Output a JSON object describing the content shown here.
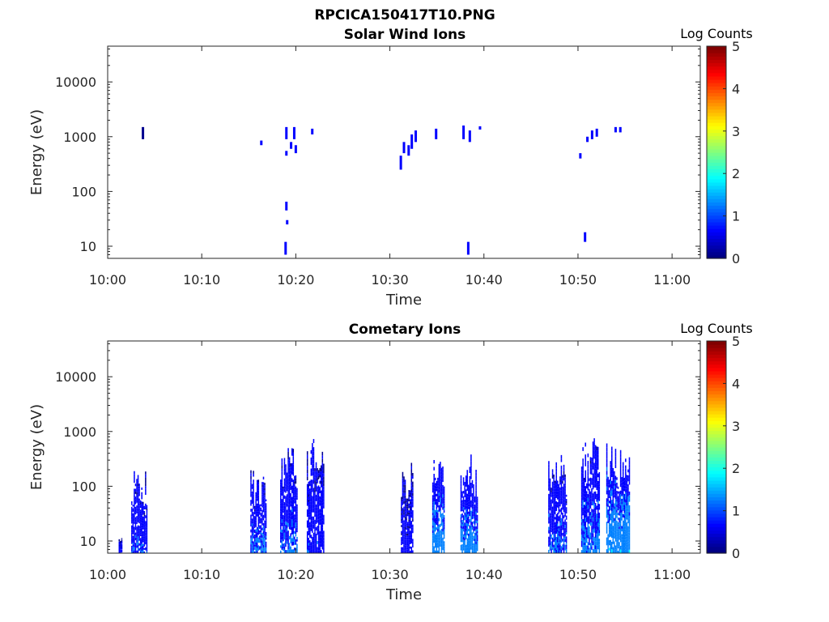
{
  "figure_title": "RPCICA150417T10.PNG",
  "colormap": [
    "#00008f",
    "#0000ff",
    "#0080ff",
    "#00ffff",
    "#80ff80",
    "#ffff00",
    "#ff8000",
    "#ff0000",
    "#800000"
  ],
  "chart_data": [
    {
      "type": "heatmap",
      "title": "Solar Wind Ions",
      "xlabel": "Time",
      "ylabel": "Energy (eV)",
      "xlim": [
        "10:00",
        "11:03"
      ],
      "x_ticks": [
        "10:00",
        "10:10",
        "10:20",
        "10:30",
        "10:40",
        "10:50",
        "11:00"
      ],
      "y_scale": "log",
      "ylim": [
        6,
        45000
      ],
      "y_ticks": [
        10,
        100,
        1000,
        10000
      ],
      "y_tick_labels": [
        "10",
        "100",
        "1000",
        "10000"
      ],
      "colorbar": {
        "label": "Log Counts",
        "range": [
          0,
          5
        ],
        "ticks": [
          "0",
          "1",
          "2",
          "3",
          "4",
          "5"
        ]
      },
      "cells": [
        {
          "t": "10:03:45",
          "e_lo": 900,
          "e_hi": 1500,
          "v": 0.3
        },
        {
          "t": "10:16:20",
          "e_lo": 700,
          "e_hi": 850,
          "v": 0.5
        },
        {
          "t": "10:18:55",
          "e_lo": 7,
          "e_hi": 12,
          "v": 0.4
        },
        {
          "t": "10:19:00",
          "e_lo": 45,
          "e_hi": 65,
          "v": 0.5
        },
        {
          "t": "10:19:05",
          "e_lo": 25,
          "e_hi": 30,
          "v": 0.4
        },
        {
          "t": "10:19:00",
          "e_lo": 450,
          "e_hi": 550,
          "v": 0.5
        },
        {
          "t": "10:19:00",
          "e_lo": 900,
          "e_hi": 1500,
          "v": 0.5
        },
        {
          "t": "10:19:30",
          "e_lo": 600,
          "e_hi": 800,
          "v": 0.5
        },
        {
          "t": "10:19:50",
          "e_lo": 900,
          "e_hi": 1500,
          "v": 0.6
        },
        {
          "t": "10:20:00",
          "e_lo": 500,
          "e_hi": 700,
          "v": 0.5
        },
        {
          "t": "10:21:45",
          "e_lo": 1100,
          "e_hi": 1400,
          "v": 0.5
        },
        {
          "t": "10:31:10",
          "e_lo": 250,
          "e_hi": 450,
          "v": 0.6
        },
        {
          "t": "10:31:30",
          "e_lo": 500,
          "e_hi": 800,
          "v": 0.5
        },
        {
          "t": "10:32:00",
          "e_lo": 450,
          "e_hi": 700,
          "v": 0.5
        },
        {
          "t": "10:32:20",
          "e_lo": 600,
          "e_hi": 1100,
          "v": 0.6
        },
        {
          "t": "10:32:45",
          "e_lo": 800,
          "e_hi": 1300,
          "v": 0.5
        },
        {
          "t": "10:34:55",
          "e_lo": 900,
          "e_hi": 1400,
          "v": 0.4
        },
        {
          "t": "10:37:50",
          "e_lo": 900,
          "e_hi": 1600,
          "v": 0.6
        },
        {
          "t": "10:38:20",
          "e_lo": 7,
          "e_hi": 12,
          "v": 0.4
        },
        {
          "t": "10:38:30",
          "e_lo": 800,
          "e_hi": 1300,
          "v": 0.5
        },
        {
          "t": "10:39:35",
          "e_lo": 1350,
          "e_hi": 1550,
          "v": 0.4
        },
        {
          "t": "10:50:15",
          "e_lo": 400,
          "e_hi": 500,
          "v": 0.4
        },
        {
          "t": "10:50:45",
          "e_lo": 12,
          "e_hi": 18,
          "v": 0.5
        },
        {
          "t": "10:51:00",
          "e_lo": 800,
          "e_hi": 1000,
          "v": 0.5
        },
        {
          "t": "10:51:30",
          "e_lo": 900,
          "e_hi": 1300,
          "v": 0.5
        },
        {
          "t": "10:52:00",
          "e_lo": 1000,
          "e_hi": 1400,
          "v": 0.5
        },
        {
          "t": "10:54:00",
          "e_lo": 1200,
          "e_hi": 1500,
          "v": 0.4
        },
        {
          "t": "10:54:30",
          "e_lo": 1200,
          "e_hi": 1500,
          "v": 0.4
        }
      ]
    },
    {
      "type": "heatmap",
      "title": "Cometary Ions",
      "xlabel": "Time",
      "ylabel": "Energy (eV)",
      "xlim": [
        "10:00",
        "11:03"
      ],
      "x_ticks": [
        "10:00",
        "10:10",
        "10:20",
        "10:30",
        "10:40",
        "10:50",
        "11:00"
      ],
      "y_scale": "log",
      "ylim": [
        6,
        45000
      ],
      "y_ticks": [
        10,
        100,
        1000,
        10000
      ],
      "y_tick_labels": [
        "10",
        "100",
        "1000",
        "10000"
      ],
      "colorbar": {
        "label": "Log Counts",
        "range": [
          0,
          5
        ],
        "ticks": [
          "0",
          "1",
          "2",
          "3",
          "4",
          "5"
        ]
      },
      "bursts": [
        {
          "t_start": "10:01:10",
          "t_end": "10:01:30",
          "e_lo": 6,
          "e_hi": 12,
          "v": 0.6
        },
        {
          "t_start": "10:02:30",
          "t_end": "10:04:10",
          "e_lo": 6,
          "e_hi": 220,
          "v": 0.9
        },
        {
          "t_start": "10:15:10",
          "t_end": "10:16:50",
          "e_lo": 6,
          "e_hi": 220,
          "v": 1.0
        },
        {
          "t_start": "10:18:20",
          "t_end": "10:20:10",
          "e_lo": 6,
          "e_hi": 650,
          "v": 1.0
        },
        {
          "t_start": "10:21:10",
          "t_end": "10:23:00",
          "e_lo": 6,
          "e_hi": 900,
          "v": 0.8
        },
        {
          "t_start": "10:31:10",
          "t_end": "10:32:30",
          "e_lo": 6,
          "e_hi": 300,
          "v": 0.6
        },
        {
          "t_start": "10:34:30",
          "t_end": "10:35:50",
          "e_lo": 6,
          "e_hi": 450,
          "v": 1.3
        },
        {
          "t_start": "10:37:30",
          "t_end": "10:39:20",
          "e_lo": 6,
          "e_hi": 420,
          "v": 1.2
        },
        {
          "t_start": "10:46:50",
          "t_end": "10:48:50",
          "e_lo": 6,
          "e_hi": 450,
          "v": 1.0
        },
        {
          "t_start": "10:50:20",
          "t_end": "10:52:20",
          "e_lo": 6,
          "e_hi": 800,
          "v": 1.1
        },
        {
          "t_start": "10:53:00",
          "t_end": "10:55:30",
          "e_lo": 6,
          "e_hi": 620,
          "v": 1.4
        }
      ]
    }
  ]
}
